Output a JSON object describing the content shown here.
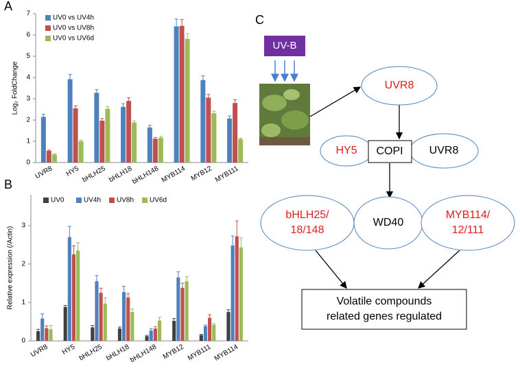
{
  "chart_data": [
    {
      "type": "bar",
      "panel_label": "A",
      "y_label": "Log₂ FoldChange",
      "categories": [
        "UVR8",
        "HY5",
        "bHLH25",
        "bHLH18",
        "bHLH148",
        "MYB114",
        "MYB12",
        "MYB111"
      ],
      "series": [
        {
          "name": "UV0 vs UV4h",
          "color": "#4f81bd",
          "values": [
            2.15,
            3.92,
            3.28,
            2.62,
            1.65,
            6.4,
            3.88,
            2.07
          ],
          "errors": [
            0.12,
            0.22,
            0.15,
            0.15,
            0.1,
            0.35,
            0.2,
            0.12
          ]
        },
        {
          "name": "UV0 vs UV8h",
          "color": "#c0504d",
          "values": [
            0.55,
            2.55,
            1.97,
            2.9,
            1.12,
            6.43,
            3.05,
            2.8
          ],
          "errors": [
            0.04,
            0.12,
            0.1,
            0.15,
            0.06,
            0.3,
            0.15,
            0.15
          ]
        },
        {
          "name": "UV0 vs UV6d",
          "color": "#9bbb59",
          "values": [
            0.38,
            1.0,
            2.53,
            1.88,
            1.17,
            5.82,
            2.32,
            1.1
          ],
          "errors": [
            0.03,
            0.05,
            0.1,
            0.08,
            0.06,
            0.25,
            0.1,
            0.05
          ]
        }
      ],
      "ylim": [
        0,
        7
      ],
      "yticks": [
        0,
        1,
        2,
        3,
        4,
        5,
        6,
        7
      ],
      "grid": false,
      "legend": "top-left"
    },
    {
      "type": "bar",
      "panel_label": "B",
      "y_label": "Relative expression (/Actin)",
      "categories": [
        "UVR8",
        "HY5",
        "bHLH25",
        "bHLH18",
        "bHLH148",
        "MYB12",
        "MYB111",
        "MYB114"
      ],
      "series": [
        {
          "name": "UV0",
          "color": "#404040",
          "values": [
            0.25,
            0.88,
            0.35,
            0.32,
            0.12,
            0.52,
            0.15,
            0.75
          ],
          "errors": [
            0.05,
            0.04,
            0.05,
            0.04,
            0.02,
            0.06,
            0.02,
            0.06
          ]
        },
        {
          "name": "UV4h",
          "color": "#4f81bd",
          "values": [
            0.58,
            2.7,
            1.55,
            1.27,
            0.27,
            1.65,
            0.38,
            2.48
          ],
          "errors": [
            0.12,
            0.28,
            0.15,
            0.15,
            0.05,
            0.15,
            0.03,
            0.25
          ]
        },
        {
          "name": "UV8h",
          "color": "#c0504d",
          "values": [
            0.33,
            2.25,
            1.25,
            1.13,
            0.32,
            1.38,
            0.6,
            2.72
          ],
          "errors": [
            0.06,
            0.22,
            0.12,
            0.1,
            0.05,
            0.12,
            0.08,
            0.4
          ]
        },
        {
          "name": "UV6d",
          "color": "#9bbb59",
          "values": [
            0.3,
            2.35,
            0.97,
            0.75,
            0.53,
            1.55,
            0.42,
            2.43
          ],
          "errors": [
            0.1,
            0.2,
            0.15,
            0.08,
            0.08,
            0.12,
            0.03,
            0.25
          ]
        }
      ],
      "ylim": [
        0,
        3.8
      ],
      "yticks": [
        0,
        1,
        2,
        3
      ],
      "grid": false,
      "legend": "top"
    }
  ],
  "diagram": {
    "panel_label": "C",
    "stimulus": "UV-B",
    "nodes": [
      {
        "lines": [
          "UVR8"
        ]
      },
      {
        "lines": [
          "HY5"
        ]
      },
      {
        "lines": [
          "COPI"
        ]
      },
      {
        "lines": [
          "UVR8"
        ]
      },
      {
        "lines": [
          "bHLH25/",
          "18/148"
        ]
      },
      {
        "lines": [
          "WD40"
        ]
      },
      {
        "lines": [
          "MYB114/",
          "12/111"
        ]
      },
      {
        "lines": [
          "Volatile compounds",
          "related genes regulated"
        ]
      }
    ]
  }
}
